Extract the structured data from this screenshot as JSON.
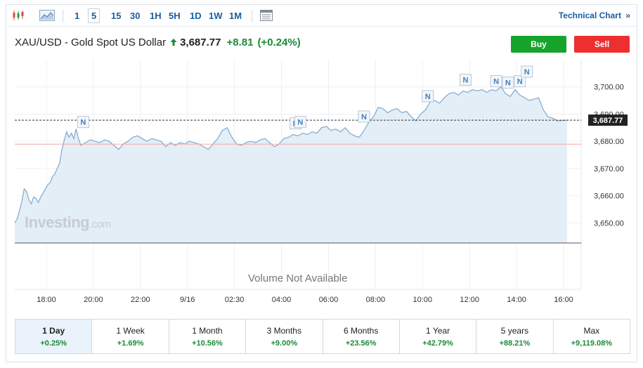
{
  "toolbar": {
    "periods": [
      "1",
      "5",
      "15",
      "30",
      "1H",
      "5H",
      "1D",
      "1W",
      "1M"
    ],
    "active_period": "5",
    "technical_chart_label": "Technical Chart",
    "technical_chart_chevron": "»",
    "icons": [
      "candlestick-icon",
      "area-chart-icon",
      "table-icon"
    ]
  },
  "header": {
    "instrument": "XAU/USD - Gold Spot US Dollar",
    "price": "3,687.77",
    "change": "+8.81",
    "change_pct": "(+0.24%)",
    "direction": "up",
    "buy_label": "Buy",
    "sell_label": "Sell"
  },
  "colors": {
    "up": "#1d8a3a",
    "buy": "#17a42c",
    "sell": "#ee2f2f",
    "line": "#7fa9d0",
    "area": "#e4eef7",
    "marker": "#3f7fc1"
  },
  "chart_data": {
    "type": "area",
    "x_ticks": [
      "18:00",
      "20:00",
      "22:00",
      "9/16",
      "02:30",
      "04:00",
      "06:00",
      "08:00",
      "10:00",
      "12:00",
      "14:00",
      "16:00"
    ],
    "y_ticks": [
      3650,
      3660,
      3670,
      3680,
      3690,
      3700
    ],
    "y_tick_labels": [
      "3,650.00",
      "3,660.00",
      "3,670.00",
      "3,680.00",
      "3,690.00",
      "3,700.00"
    ],
    "ylim": [
      3642.6,
      3710.0
    ],
    "xlim": [
      0,
      24
    ],
    "current_price": 3687.77,
    "current_price_label": "3,687.77",
    "previous_close": 3678.96,
    "series": [
      {
        "x": [
          0.0,
          0.1,
          0.2,
          0.3,
          0.4,
          0.5,
          0.6,
          0.7,
          0.8,
          0.9,
          1.0,
          1.1,
          1.2,
          1.3,
          1.4,
          1.5,
          1.6,
          1.7,
          1.8,
          1.9,
          2.0,
          2.1,
          2.2,
          2.3,
          2.4,
          2.5,
          2.6,
          2.7,
          2.8,
          2.9,
          3.0,
          3.2,
          3.4,
          3.6,
          3.8,
          4.0,
          4.2,
          4.4,
          4.6,
          4.8,
          5.0,
          5.2,
          5.4,
          5.6,
          5.8,
          6.0,
          6.2,
          6.4,
          6.6,
          6.8,
          7.0,
          7.2,
          7.4,
          7.6,
          7.8,
          8.0,
          8.2,
          8.4,
          8.6,
          8.8,
          9.0,
          9.2,
          9.4,
          9.6,
          9.8,
          10.0,
          10.2,
          10.4,
          10.6,
          10.8,
          11.0,
          11.2,
          11.4,
          11.6,
          11.8,
          12.0,
          12.2,
          12.4,
          12.6,
          12.8,
          13.0,
          13.2,
          13.4,
          13.6,
          13.8,
          14.0,
          14.2,
          14.4,
          14.6,
          14.8,
          15.0,
          15.2,
          15.4,
          15.6,
          15.8,
          16.0,
          16.2,
          16.4,
          16.6,
          16.8,
          17.0,
          17.2,
          17.4,
          17.6,
          17.8,
          18.0,
          18.2,
          18.4,
          18.6,
          18.8,
          19.0,
          19.2,
          19.4,
          19.6,
          19.8,
          20.0,
          20.2,
          20.4,
          20.6,
          20.8,
          21.0,
          21.2,
          21.4,
          21.6,
          21.8,
          22.0,
          22.2,
          22.4,
          22.6,
          22.8,
          23.0,
          23.2,
          23.4
        ],
        "values": [
          3650.0,
          3651.5,
          3654.5,
          3658.0,
          3662.5,
          3661.5,
          3658.5,
          3657.0,
          3659.5,
          3659.0,
          3657.5,
          3659.5,
          3661.0,
          3662.5,
          3664.0,
          3664.8,
          3667.0,
          3668.0,
          3670.0,
          3672.0,
          3677.0,
          3680.5,
          3683.5,
          3681.5,
          3683.0,
          3681.0,
          3684.5,
          3681.0,
          3678.5,
          3679.0,
          3679.5,
          3680.5,
          3680.0,
          3679.5,
          3680.5,
          3680.0,
          3678.5,
          3677.0,
          3679.0,
          3680.0,
          3681.5,
          3682.0,
          3681.0,
          3680.0,
          3681.0,
          3680.5,
          3680.0,
          3678.0,
          3679.5,
          3678.5,
          3679.5,
          3679.0,
          3680.0,
          3679.5,
          3679.0,
          3678.0,
          3677.0,
          3679.0,
          3681.0,
          3684.0,
          3685.0,
          3681.5,
          3679.0,
          3678.5,
          3679.5,
          3680.0,
          3679.5,
          3680.5,
          3681.0,
          3679.5,
          3678.0,
          3679.0,
          3681.0,
          3681.5,
          3682.5,
          3682.0,
          3683.0,
          3682.5,
          3683.5,
          3683.0,
          3685.0,
          3685.5,
          3684.0,
          3684.5,
          3683.5,
          3685.0,
          3683.0,
          3682.0,
          3681.5,
          3684.0,
          3687.0,
          3689.0,
          3692.5,
          3692.0,
          3690.5,
          3691.5,
          3692.0,
          3690.5,
          3691.0,
          3689.0,
          3687.5,
          3690.0,
          3691.5,
          3694.5,
          3695.0,
          3694.0,
          3696.0,
          3697.5,
          3698.0,
          3697.0,
          3698.5,
          3698.0,
          3699.0,
          3698.5,
          3699.0,
          3698.0,
          3699.0,
          3698.5,
          3700.0,
          3697.5,
          3696.5,
          3699.0,
          3697.0,
          3696.0,
          3695.0,
          3695.5,
          3696.0,
          3691.5,
          3689.0,
          3688.5,
          3687.5,
          3687.6,
          3687.77
        ]
      }
    ],
    "news_markers": [
      {
        "x": 2.9,
        "value": 3684.0,
        "label": "N"
      },
      {
        "x": 11.9,
        "value": 3683.5,
        "label": "N"
      },
      {
        "x": 12.1,
        "value": 3684.0,
        "label": "N"
      },
      {
        "x": 14.8,
        "value": 3686.0,
        "label": "N"
      },
      {
        "x": 17.5,
        "value": 3693.5,
        "label": "N"
      },
      {
        "x": 19.1,
        "value": 3699.5,
        "label": "N"
      },
      {
        "x": 20.4,
        "value": 3699.0,
        "label": "N"
      },
      {
        "x": 20.9,
        "value": 3698.5,
        "label": "N"
      },
      {
        "x": 21.4,
        "value": 3699.0,
        "label": "N"
      },
      {
        "x": 21.7,
        "value": 3702.5,
        "label": "N"
      }
    ],
    "grid": true
  },
  "watermark": {
    "brand": "Investing",
    "suffix": ".com"
  },
  "volume_label": "Volume Not Available",
  "performance": [
    {
      "label": "1 Day",
      "value": "+0.25%",
      "active": true
    },
    {
      "label": "1 Week",
      "value": "+1.69%"
    },
    {
      "label": "1 Month",
      "value": "+10.56%"
    },
    {
      "label": "3 Months",
      "value": "+9.00%"
    },
    {
      "label": "6 Months",
      "value": "+23.56%"
    },
    {
      "label": "1 Year",
      "value": "+42.79%"
    },
    {
      "label": "5 years",
      "value": "+88.21%"
    },
    {
      "label": "Max",
      "value": "+9,119.08%"
    }
  ]
}
